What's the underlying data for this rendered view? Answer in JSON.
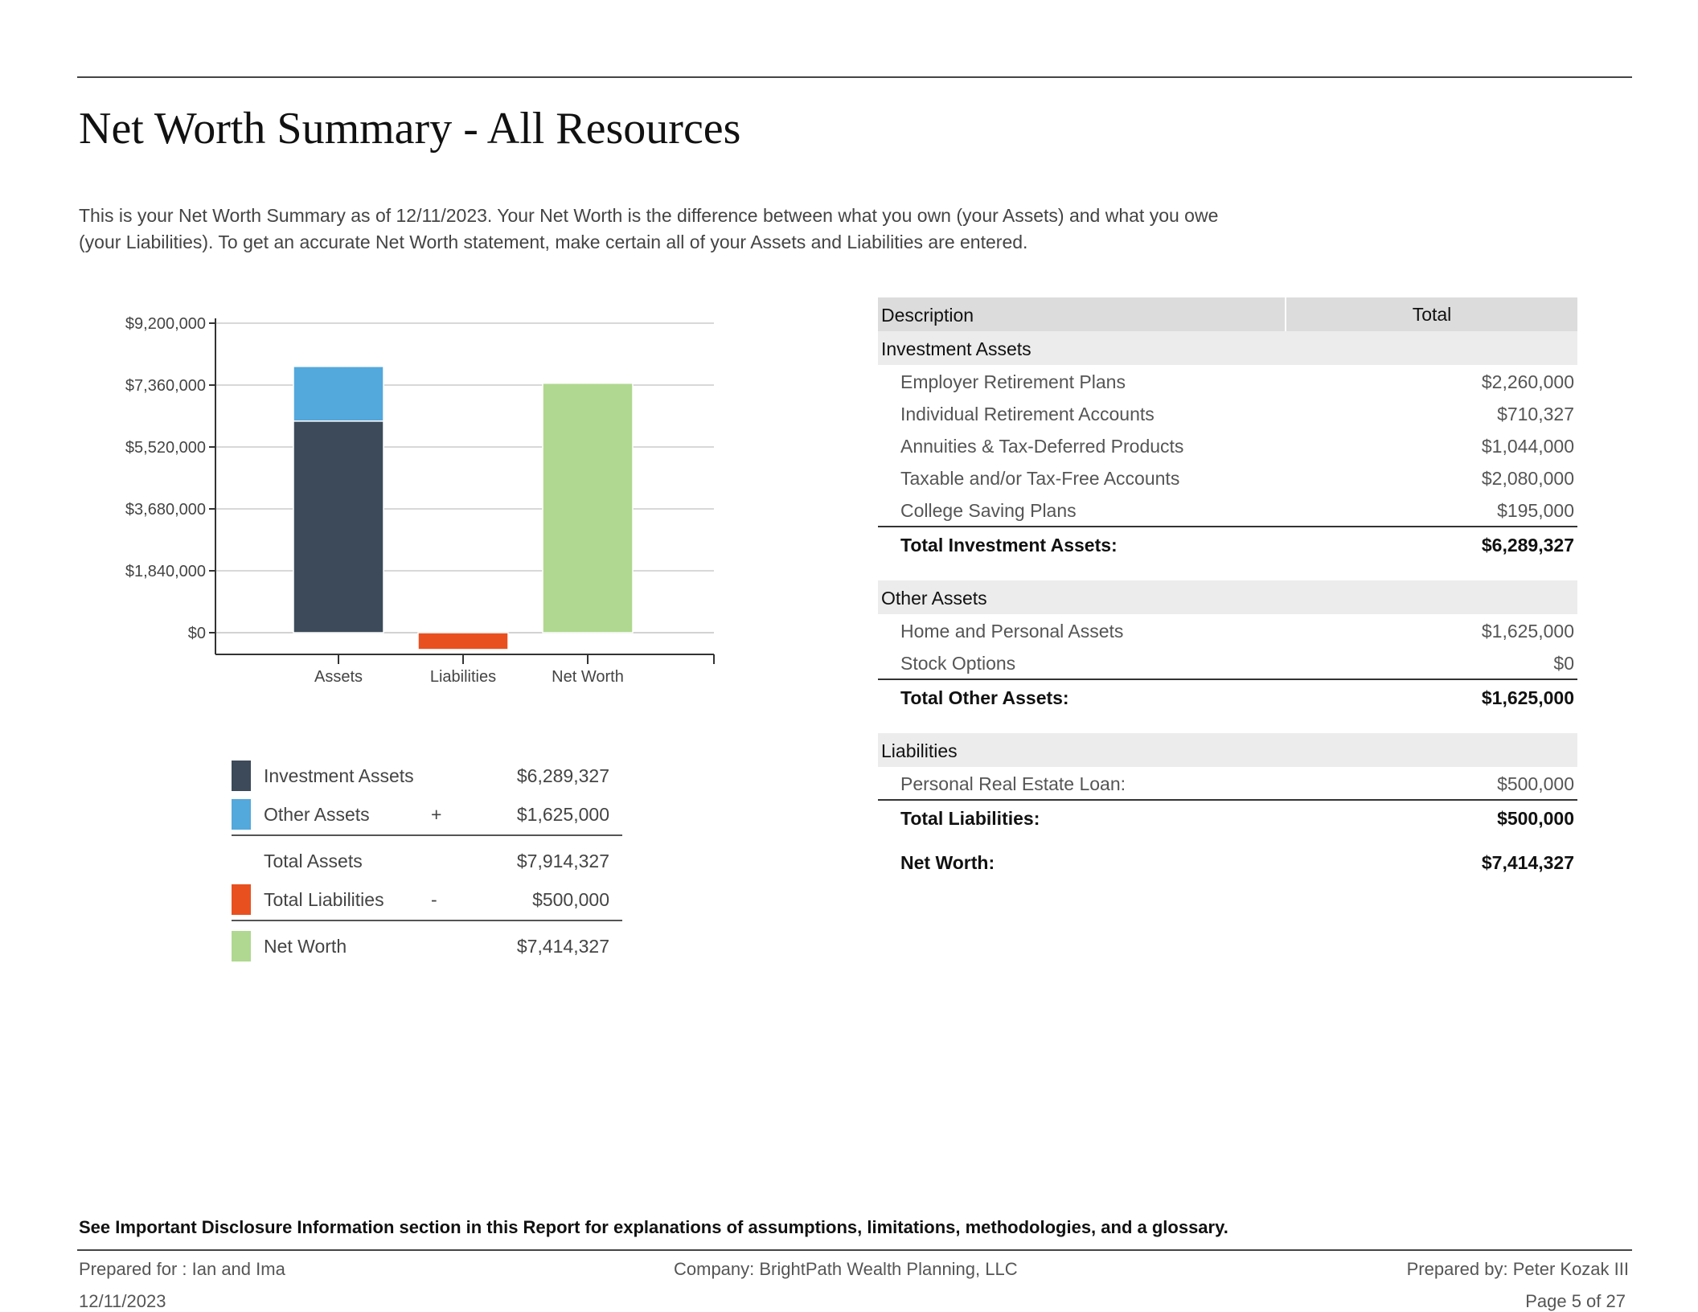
{
  "page": {
    "title": "Net Worth Summary - All Resources",
    "intro": "This is your Net Worth Summary as of 12/11/2023. Your Net Worth is the difference between what you own (your Assets) and what you owe (your Liabilities). To get an accurate Net Worth statement, make certain all of your Assets and Liabilities are entered."
  },
  "colors": {
    "investment_assets": "#3c4a5a",
    "other_assets": "#53a8dc",
    "liabilities": "#e8501f",
    "net_worth": "#b0d890"
  },
  "chart_data": {
    "type": "bar",
    "stacked": true,
    "categories": [
      "Assets",
      "Liabilities",
      "Net Worth"
    ],
    "series": [
      {
        "name": "Investment Assets",
        "values": [
          6289327,
          0,
          0
        ]
      },
      {
        "name": "Other Assets",
        "values": [
          1625000,
          0,
          0
        ]
      },
      {
        "name": "Total Liabilities",
        "values": [
          0,
          -500000,
          0
        ]
      },
      {
        "name": "Net Worth",
        "values": [
          0,
          0,
          7414327
        ]
      }
    ],
    "yticks": [
      "$9,200,000",
      "$7,360,000",
      "$5,520,000",
      "$3,680,000",
      "$1,840,000",
      "$0"
    ],
    "ylim": [
      -600000,
      9200000
    ],
    "grid": true
  },
  "legend": {
    "rows": [
      {
        "label": "Investment Assets",
        "op": "",
        "value": "$6,289,327"
      },
      {
        "label": "Other Assets",
        "op": "+",
        "value": "$1,625,000"
      },
      {
        "label": "Total Assets",
        "op": "",
        "value": "$7,914,327"
      },
      {
        "label": "Total Liabilities",
        "op": "-",
        "value": "$500,000"
      },
      {
        "label": "Net Worth",
        "op": "",
        "value": "$7,414,327"
      }
    ]
  },
  "table": {
    "header": {
      "description": "Description",
      "total": "Total"
    },
    "investment": {
      "heading": "Investment Assets",
      "rows": [
        {
          "label": "Employer Retirement Plans",
          "value": "$2,260,000"
        },
        {
          "label": "Individual Retirement Accounts",
          "value": "$710,327"
        },
        {
          "label": "Annuities & Tax-Deferred Products",
          "value": "$1,044,000"
        },
        {
          "label": "Taxable and/or Tax-Free Accounts",
          "value": "$2,080,000"
        },
        {
          "label": "College Saving Plans",
          "value": "$195,000"
        }
      ],
      "total_label": "Total Investment Assets:",
      "total_value": "$6,289,327"
    },
    "other": {
      "heading": "Other Assets",
      "rows": [
        {
          "label": "Home and Personal Assets",
          "value": "$1,625,000"
        },
        {
          "label": "Stock Options",
          "value": "$0"
        }
      ],
      "total_label": "Total Other Assets:",
      "total_value": "$1,625,000"
    },
    "liabilities": {
      "heading": "Liabilities",
      "rows": [
        {
          "label": "Personal Real Estate Loan:",
          "value": "$500,000"
        }
      ],
      "total_label": "Total Liabilities:",
      "total_value": "$500,000"
    },
    "net_worth_label": "Net Worth:",
    "net_worth_value": "$7,414,327"
  },
  "footer": {
    "disclosure": "See Important Disclosure Information section in this Report for explanations of assumptions, limitations, methodologies, and a glossary.",
    "prepared_for": "Prepared for : Ian and Ima",
    "company": "Company: BrightPath Wealth Planning, LLC",
    "prepared_by": "Prepared by: Peter Kozak III",
    "date": "12/11/2023",
    "page": "Page 5 of 27"
  }
}
